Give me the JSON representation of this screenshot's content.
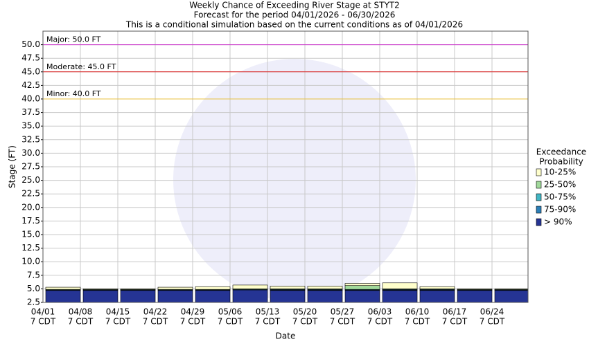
{
  "chart_data": {
    "type": "range-bar",
    "title": [
      "Weekly Chance of Exceeding River Stage at STYT2",
      "Forecast for the period 04/01/2026 - 06/30/2026",
      "This is a conditional simulation based on the current conditions as of 04/01/2026"
    ],
    "ylabel": "Stage (FT)",
    "xlabel": "Date",
    "categories": [
      "04/01",
      "04/08",
      "04/15",
      "04/22",
      "04/29",
      "05/06",
      "05/13",
      "05/20",
      "05/27",
      "06/03",
      "06/10",
      "06/17",
      "06/24"
    ],
    "category_sublabels": [
      "7 CDT",
      "7 CDT",
      "7 CDT",
      "7 CDT",
      "7 CDT",
      "7 CDT",
      "7 CDT",
      "7 CDT",
      "7 CDT",
      "7 CDT",
      "7 CDT",
      "7 CDT",
      "7 CDT"
    ],
    "legend_title": [
      "Exceedance",
      "Probability"
    ],
    "series": [
      {
        "name": "10-25%",
        "color": "#ffffcc",
        "values": [
          5.3,
          5.0,
          5.0,
          5.3,
          5.4,
          5.7,
          5.5,
          5.5,
          6.0,
          6.1,
          5.4,
          5.0,
          5.0
        ]
      },
      {
        "name": "25-50%",
        "color": "#a1d99b",
        "values": [
          4.9,
          4.9,
          4.9,
          4.9,
          4.9,
          5.0,
          5.0,
          5.0,
          5.6,
          5.0,
          5.0,
          4.9,
          4.9
        ]
      },
      {
        "name": "50-75%",
        "color": "#41b6c4",
        "values": [
          4.8,
          4.8,
          4.8,
          4.8,
          4.8,
          4.9,
          4.9,
          4.9,
          4.9,
          4.9,
          4.9,
          4.8,
          4.8
        ]
      },
      {
        "name": "75-90%",
        "color": "#2c7fb8",
        "values": [
          4.8,
          4.8,
          4.8,
          4.8,
          4.8,
          4.8,
          4.8,
          4.8,
          4.8,
          4.8,
          4.8,
          4.8,
          4.8
        ]
      },
      {
        "name": "> 90%",
        "color": "#253494",
        "values": [
          4.7,
          4.7,
          4.7,
          4.7,
          4.7,
          4.8,
          4.7,
          4.7,
          4.7,
          4.7,
          4.7,
          4.7,
          4.7
        ]
      }
    ],
    "thresholds": [
      {
        "label": "Major: 50.0 FT",
        "value": 50,
        "color": "#cc33cc"
      },
      {
        "label": "Moderate: 45.0 FT",
        "value": 45,
        "color": "#dd2222"
      },
      {
        "label": "Minor: 40.0 FT",
        "value": 40,
        "color": "#e8c040"
      }
    ],
    "ylim": [
      2.5,
      52.5
    ],
    "yticks": [
      2.5,
      {
        "value": 5,
        "label": "5.0"
      },
      7.5,
      {
        "value": 10,
        "label": "10.0"
      },
      12.5,
      {
        "value": 15,
        "label": "15.0"
      },
      17.5,
      {
        "value": 20,
        "label": "20.0"
      },
      22.5,
      {
        "value": 25,
        "label": "25.0"
      },
      27.5,
      {
        "value": 30,
        "label": "30.0"
      },
      32.5,
      {
        "value": 35,
        "label": "35.0"
      },
      37.5,
      {
        "value": 40,
        "label": "40.0"
      },
      42.5,
      {
        "value": 45,
        "label": "45.0"
      },
      47.5,
      {
        "value": 50,
        "label": "50.0"
      }
    ],
    "grid": true
  }
}
